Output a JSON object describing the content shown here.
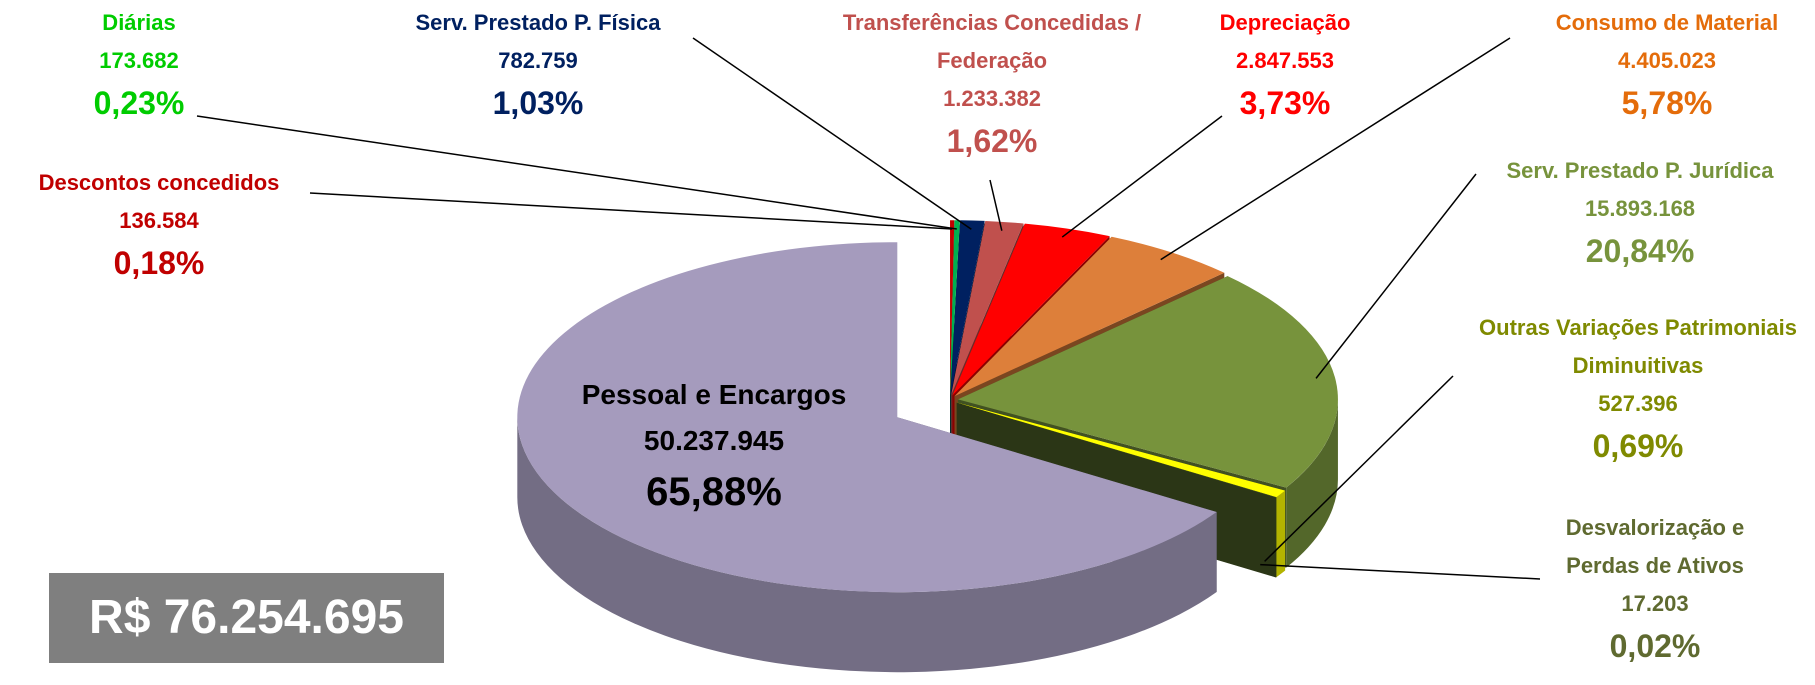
{
  "chart_data": {
    "type": "pie",
    "categories": [
      "Descontos concedidos",
      "Diárias",
      "Serv. Prestado P. Física",
      "Transferências Concedidas / Federação",
      "Depreciação",
      "Consumo de Material",
      "Serv. Prestado P. Jurídica",
      "Outras Variações Patrimoniais Diminuitivas",
      "Desvalorização e Perdas de Ativos",
      "Pessoal e Encargos"
    ],
    "values": [
      136584,
      173682,
      782759,
      1233382,
      2847553,
      4405023,
      15893168,
      527396,
      17203,
      50237945
    ],
    "value_labels": [
      "136.584",
      "173.682",
      "782.759",
      "1.233.382",
      "2.847.553",
      "4.405.023",
      "15.893.168",
      "527.396",
      "17.203",
      "50.237.945"
    ],
    "percents": [
      0.18,
      0.23,
      1.03,
      1.62,
      3.73,
      5.78,
      20.84,
      0.69,
      0.02,
      65.88
    ],
    "percent_labels": [
      "0,18%",
      "0,23%",
      "1,03%",
      "1,62%",
      "3,73%",
      "5,78%",
      "20,84%",
      "0,69%",
      "0,02%",
      "65,88%"
    ],
    "colors": [
      "#c00000",
      "#00b050",
      "#002060",
      "#c0504d",
      "#ff0000",
      "#dd7f3a",
      "#77933c",
      "#ffff00",
      "#4f6228",
      "#a59bbd"
    ],
    "label_colors": [
      "#c00000",
      "#00cc00",
      "#002060",
      "#c0504d",
      "#ff0000",
      "#e46c0a",
      "#77933c",
      "#7f8a00",
      "#5f6a30",
      "#000000"
    ],
    "annotation": "R$ 76.254.695"
  }
}
